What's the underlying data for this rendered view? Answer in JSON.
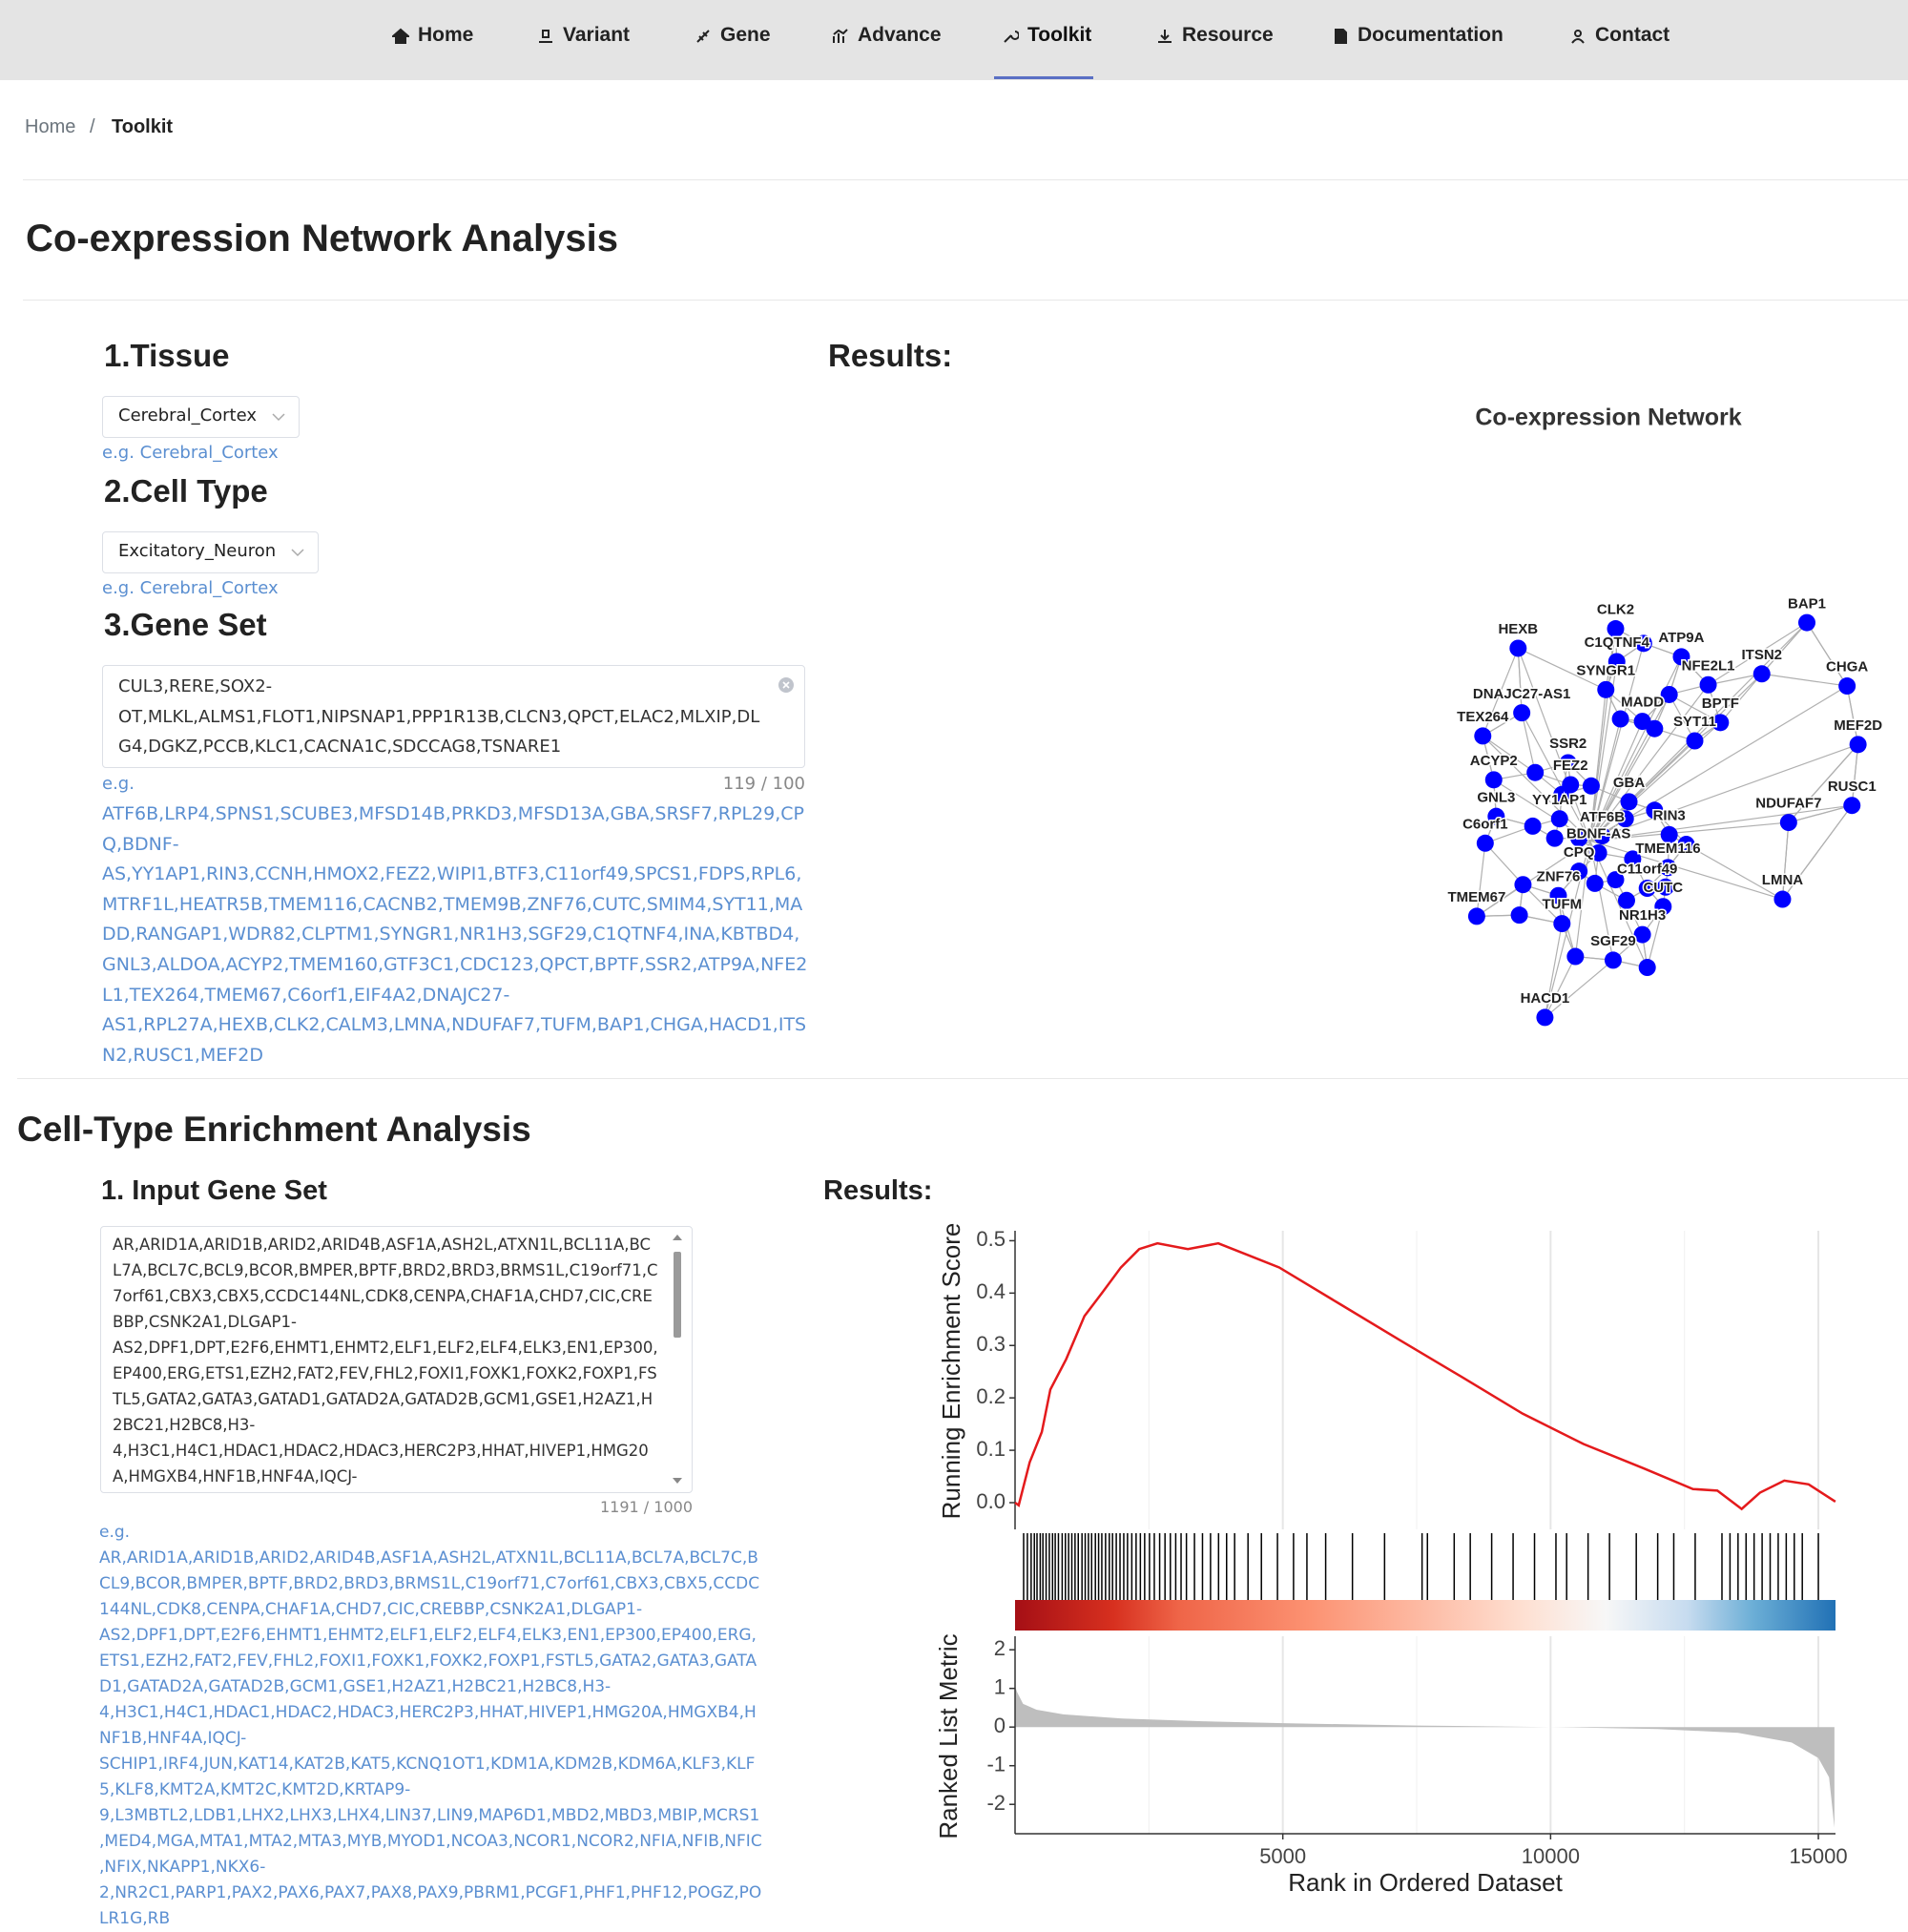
{
  "nav": {
    "items": [
      "Home",
      "Variant",
      "Gene",
      "Advance",
      "Toolkit",
      "Resource",
      "Documentation",
      "Contact"
    ],
    "active": 4
  },
  "breadcrumb": [
    "Home",
    "Toolkit"
  ],
  "breadcrumb_separator": "/",
  "coexpression": {
    "title": "Co-expression Network Analysis",
    "tissue": {
      "label": "1.Tissue",
      "value": "Cerebral_Cortex",
      "hint": "e.g. Cerebral_Cortex"
    },
    "cell_type": {
      "label": "2.Cell Type",
      "value": "Excitatory_Neuron",
      "hint": "e.g. Cerebral_Cortex"
    },
    "gene_set": {
      "label": "3.Gene Set",
      "value": "CUL3,RERE,SOX2-OT,MLKL,ALMS1,FLOT1,NIPSNAP1,PPP1R13B,CLCN3,QPCT,ELAC2,MLXIP,DLG4,DGKZ,PCCB,KLC1,CACNA1C,SDCCAG8,TSNARE1",
      "eg": "e.g.",
      "count": "119 / 100",
      "example": "ATF6B,LRP4,SPNS1,SCUBE3,MFSD14B,PRKD3,MFSD13A,GBA,SRSF7,RPL29,CPQ,BDNF-AS,YY1AP1,RIN3,CCNH,HMOX2,FEZ2,WIPI1,BTF3,C11orf49,SPCS1,FDPS,RPL6,MTRF1L,HEATR5B,TMEM116,CACNB2,TMEM9B,ZNF76,CUTC,SMIM4,SYT11,MADD,RANGAP1,WDR82,CLPTM1,SYNGR1,NR1H3,SGF29,C1QTNF4,INA,KBTBD4,GNL3,ALDOA,ACYP2,TMEM160,GTF3C1,CDC123,QPCT,BPTF,SSR2,ATP9A,NFE2L1,TEX264,TMEM67,C6orf1,EIF4A2,DNAJC27-AS1,RPL27A,HEXB,CLK2,CALM3,LMNA,NDUFAF7,TUFM,BAP1,CHGA,HACD1,ITSN2,RUSC1,MEF2D"
    },
    "results": "Results:",
    "network": {
      "title": "Co-expression Network",
      "color": "#0000ff",
      "nodes": [
        "BAP1",
        "CHGA",
        "MEF2D",
        "RUSC1",
        "NDUFAF7",
        "LMNA",
        "ITSN2",
        "CLK2",
        "HEXB",
        "C1QTNF4",
        "ATP9A",
        "SYNGR1",
        "NFE2L1",
        "DNAJC27-AS1",
        "MADD",
        "BPTF",
        "SYT11",
        "TEX264",
        "SSR2",
        "ACYP2",
        "FEZ2",
        "GBA",
        "GNL3",
        "YY1AP1",
        "RIN3",
        "C6orf1",
        "ATF6B",
        "BDNF-AS",
        "TMEM116",
        "CPQ",
        "C11orf49",
        "ZNF76",
        "CUTC",
        "TMEM67",
        "TUFM",
        "NR1H3",
        "SGF29",
        "HACD1"
      ]
    }
  },
  "enrichment": {
    "title": "Cell-Type Enrichment Analysis",
    "input": {
      "label": "1. Input Gene Set",
      "value": "AR,ARID1A,ARID1B,ARID2,ARID4B,ASF1A,ASH2L,ATXN1L,BCL11A,BCL7A,BCL7C,BCL9,BCOR,BMPER,BPTF,BRD2,BRD3,BRMS1L,C19orf71,C7orf61,CBX3,CBX5,CCDC144NL,CDK8,CENPA,CHAF1A,CHD7,CIC,CREBBP,CSNK2A1,DLGAP1-AS2,DPF1,DPT,E2F6,EHMT1,EHMT2,ELF1,ELF2,ELF4,ELK3,EN1,EP300,EP400,ERG,ETS1,EZH2,FAT2,FEV,FHL2,FOXI1,FOXK1,FOXK2,FOXP1,FSTL5,GATA2,GATA3,GATAD1,GATAD2A,GATAD2B,GCM1,GSE1,H2AZ1,H2BC21,H2BC8,H3-4,H3C1,H4C1,HDAC1,HDAC2,HDAC3,HERC2P3,HHAT,HIVEP1,HMG20A,HMGXB4,HNF1B,HNF4A,IQCJ-",
      "count": "1191 / 1000",
      "eg": "e.g.",
      "example": "AR,ARID1A,ARID1B,ARID2,ARID4B,ASF1A,ASH2L,ATXN1L,BCL11A,BCL7A,BCL7C,BCL9,BCOR,BMPER,BPTF,BRD2,BRD3,BRMS1L,C19orf71,C7orf61,CBX3,CBX5,CCDC144NL,CDK8,CENPA,CHAF1A,CHD7,CIC,CREBBP,CSNK2A1,DLGAP1-AS2,DPF1,DPT,E2F6,EHMT1,EHMT2,ELF1,ELF2,ELF4,ELK3,EN1,EP300,EP400,ERG,ETS1,EZH2,FAT2,FEV,FHL2,FOXI1,FOXK1,FOXK2,FOXP1,FSTL5,GATA2,GATA3,GATAD1,GATAD2A,GATAD2B,GCM1,GSE1,H2AZ1,H2BC21,H2BC8,H3-4,H3C1,H4C1,HDAC1,HDAC2,HDAC3,HERC2P3,HHAT,HIVEP1,HMG20A,HMGXB4,HNF1B,HNF4A,IQCJ-SCHIP1,IRF4,JUN,KAT14,KAT2B,KAT5,KCNQ1OT1,KDM1A,KDM2B,KDM6A,KLF3,KLF5,KLF8,KMT2A,KMT2C,KMT2D,KRTAP9-9,L3MBTL2,LDB1,LHX2,LHX3,LHX4,LIN37,LIN9,MAP6D1,MBD2,MBD3,MBIP,MCRS1,MED4,MGA,MTA1,MTA2,MTA3,MYB,MYOD1,NCOA3,NCOR1,NCOR2,NFIA,NFIB,NFIC,NFIX,NKAPP1,NKX6-2,NR2C1,PARP1,PAX2,PAX6,PAX7,PAX8,PAX9,PBRM1,PCGF1,PHF1,PHF12,POGZ,POLR1G,RB"
    },
    "results": "Results:"
  },
  "chart_data": {
    "type": "line",
    "xlabel": "Rank in Ordered Dataset",
    "xlim": [
      0,
      15320
    ],
    "xticks": [
      5000,
      10000,
      15000
    ],
    "grid": true,
    "es": {
      "ylabel": "Running Enrichment Score",
      "ylim": [
        -0.051,
        0.519
      ],
      "yticks": [
        {
          "value": 0,
          "label": "0.0"
        },
        {
          "value": 0.1,
          "label": "0.1"
        },
        {
          "value": 0.2,
          "label": "0.2"
        },
        {
          "value": 0.3,
          "label": "0.3"
        },
        {
          "value": 0.4,
          "label": "0.4"
        },
        {
          "value": 0.5,
          "label": "0.5"
        }
      ],
      "color": "#e41a1c",
      "x": [
        0,
        68,
        273,
        500,
        659,
        955,
        1295,
        1636,
        1977,
        2318,
        2659,
        3227,
        3795,
        4364,
        4932,
        6068,
        7205,
        8341,
        9477,
        10614,
        11750,
        12659,
        13114,
        13568,
        13909,
        14364,
        14818,
        15318
      ],
      "values": [
        0,
        -0.005,
        0.077,
        0.135,
        0.216,
        0.274,
        0.356,
        0.402,
        0.449,
        0.484,
        0.495,
        0.484,
        0.495,
        0.472,
        0.449,
        0.379,
        0.309,
        0.24,
        0.17,
        0.112,
        0.065,
        0.026,
        0.023,
        -0.012,
        0.019,
        0.042,
        0.035,
        0.002
      ]
    },
    "hits": {
      "color": "#000000",
      "x": [
        160,
        230,
        300,
        360,
        410,
        470,
        520,
        580,
        640,
        700,
        750,
        810,
        880,
        940,
        1000,
        1060,
        1120,
        1180,
        1250,
        1310,
        1370,
        1430,
        1500,
        1560,
        1620,
        1690,
        1760,
        1820,
        1890,
        1960,
        2030,
        2100,
        2180,
        2260,
        2340,
        2420,
        2510,
        2600,
        2700,
        2800,
        2900,
        3000,
        3100,
        3200,
        3350,
        3500,
        3650,
        3800,
        3950,
        4100,
        4350,
        4600,
        4900,
        5200,
        5450,
        5800,
        6300,
        6900,
        7600,
        7700,
        8200,
        8500,
        8900,
        9300,
        9700,
        10100,
        10300,
        10700,
        11100,
        11600,
        12000,
        12300,
        12700,
        13200,
        13350,
        13500,
        13650,
        13800,
        13950,
        14100,
        14250,
        14400,
        14550,
        14700,
        15000
      ]
    },
    "metric": {
      "ylabel": "Ranked List Metric",
      "ylim": [
        -2.76,
        2.35
      ],
      "yticks": [
        2,
        1,
        0,
        -1,
        -2
      ],
      "color": "#bebebe",
      "x": [
        0,
        40,
        150,
        400,
        900,
        2000,
        3500,
        5000,
        7500,
        10000,
        12000,
        13500,
        14500,
        15000,
        15200,
        15300
      ],
      "values": [
        1.05,
        0.9,
        0.6,
        0.45,
        0.33,
        0.22,
        0.15,
        0.1,
        0.04,
        0,
        -0.05,
        -0.15,
        -0.4,
        -0.8,
        -1.3,
        -2.6
      ]
    }
  }
}
